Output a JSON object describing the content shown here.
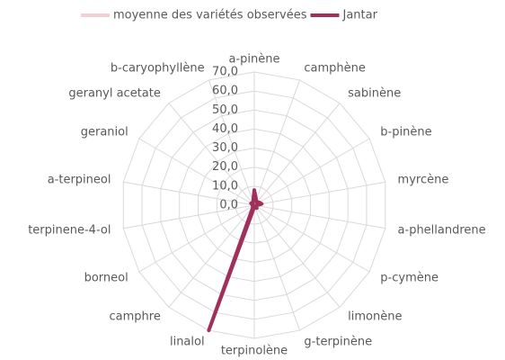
{
  "chart_data": {
    "type": "radar",
    "categories": [
      "a-pinène",
      "camphène",
      "sabinène",
      "b-pinène",
      "myrcène",
      "a-phellandrene",
      "p-cymène",
      "limonène",
      "g-terpinène",
      "terpinolène",
      "linalol",
      "camphre",
      "borneol",
      "terpinene-4-ol",
      "a-terpineol",
      "geraniol",
      "geranyl acetate",
      "b-caryophyllène"
    ],
    "series": [
      {
        "name": "moyenne des variétés observées",
        "color": "#f2d0d4",
        "values": [
          3,
          1,
          1,
          2,
          3,
          1,
          1,
          1,
          1,
          1,
          50,
          1,
          1,
          1,
          1,
          1,
          1,
          2
        ]
      },
      {
        "name": "Jantar",
        "color": "#a0305a",
        "values": [
          8,
          3,
          2,
          3,
          4,
          1,
          1,
          2,
          1,
          1,
          70,
          1,
          1,
          1,
          1,
          2,
          1,
          2
        ]
      }
    ],
    "ylim": [
      0,
      70
    ],
    "yticks": [
      {
        "value": 0,
        "label": "0,0"
      },
      {
        "value": 10,
        "label": "10,0"
      },
      {
        "value": 20,
        "label": "20,0"
      },
      {
        "value": 30,
        "label": "30,0"
      },
      {
        "value": 40,
        "label": "40,0"
      },
      {
        "value": 50,
        "label": "50,0"
      },
      {
        "value": 60,
        "label": "60,0"
      },
      {
        "value": 70,
        "label": "70,0"
      }
    ],
    "legend": "top",
    "grid": true
  }
}
